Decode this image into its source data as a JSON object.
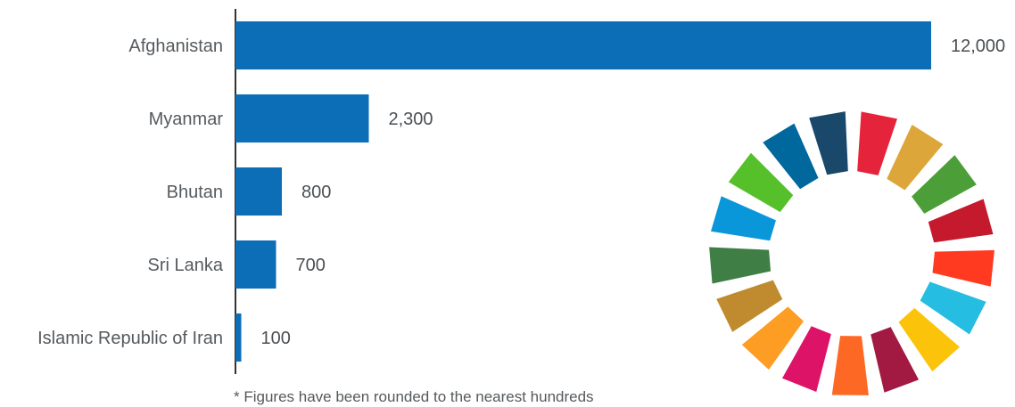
{
  "chart_data": {
    "type": "bar",
    "orientation": "horizontal",
    "categories": [
      "Afghanistan",
      "Myanmar",
      "Bhutan",
      "Sri Lanka",
      "Islamic Republic of Iran"
    ],
    "values": [
      12000,
      2300,
      800,
      700,
      100
    ],
    "value_labels": [
      "12,000",
      "2,300",
      "800",
      "700",
      "100"
    ],
    "title": "",
    "xlabel": "",
    "ylabel": "",
    "xlim": [
      0,
      12000
    ],
    "grid": false,
    "bar_color": "#0d6eb8"
  },
  "footnote": "* Figures have been rounded to the nearest hundreds",
  "sdg_wheel": {
    "name": "sdg-color-wheel",
    "colors": [
      "#e5243b",
      "#dda63a",
      "#4c9f38",
      "#c5192d",
      "#ff3a21",
      "#26bde2",
      "#fcc30b",
      "#a21942",
      "#fd6925",
      "#dd1367",
      "#fd9d24",
      "#bf8b2e",
      "#3f7e44",
      "#0a97d9",
      "#56c02b",
      "#00689d",
      "#19486a"
    ]
  }
}
